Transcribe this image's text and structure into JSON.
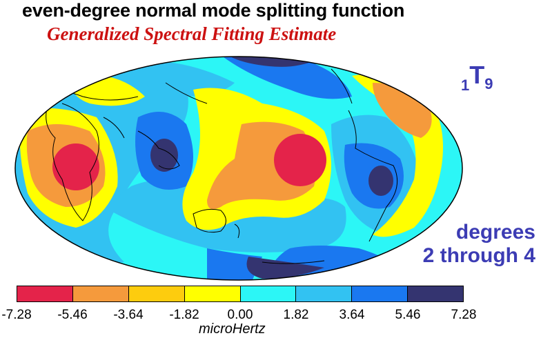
{
  "title": "even-degree normal mode splitting function",
  "subtitle": "Generalized Spectral Fitting Estimate",
  "mode": {
    "overtone": "1",
    "letter": "T",
    "degree": "9"
  },
  "degrees_label": [
    "degrees",
    "2 through 4"
  ],
  "colorbar": {
    "colors": [
      "#e4234a",
      "#f59a3c",
      "#fdcc0e",
      "#ffff00",
      "#2cf6f6",
      "#32c2f2",
      "#1a78f0",
      "#343470"
    ],
    "ticks": [
      "-7.28",
      "-5.46",
      "-3.64",
      "-1.82",
      "0.00",
      "1.82",
      "3.64",
      "5.46",
      "7.28"
    ],
    "unit": "microHertz"
  },
  "map": {
    "projection": "Hammer/Mollweide ellipse",
    "background": "#2cf6f6"
  }
}
